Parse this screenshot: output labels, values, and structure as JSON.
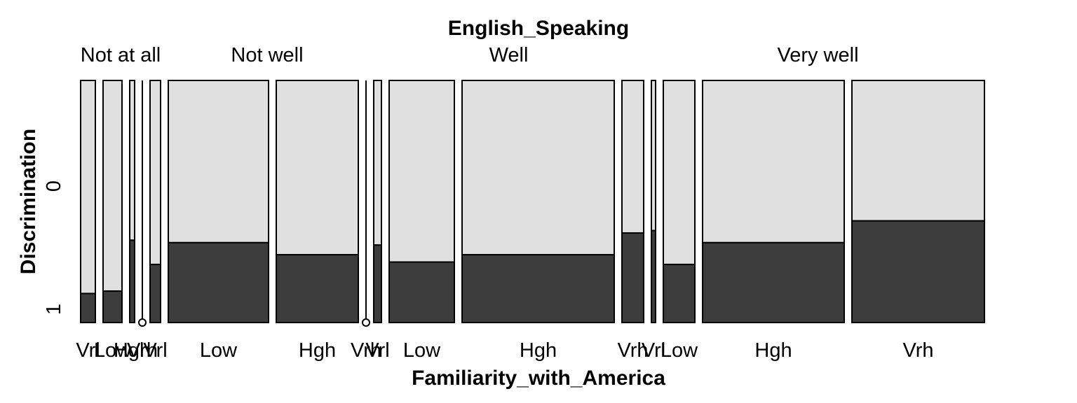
{
  "chart_data": {
    "type": "mosaic",
    "title": "English_Speaking",
    "xlabel": "Familiarity_with_America",
    "ylabel": "Discrimination",
    "y_levels": [
      "0",
      "1"
    ],
    "colors": {
      "0": "#e0e0e0",
      "1": "#3d3d3d"
    },
    "groups": [
      {
        "name": "Not at all",
        "cells": [
          {
            "label": "Vrl",
            "width": 21,
            "prop1": 0.12
          },
          {
            "label": "Low",
            "width": 27,
            "prop1": 0.13
          },
          {
            "label": "Hgh",
            "width": 7,
            "prop1": 0.34
          },
          {
            "label": "Vrh",
            "width": 0,
            "prop1": null
          },
          {
            "label": "Vrl",
            "width": 15,
            "prop1": 0.24
          }
        ]
      },
      {
        "name": "Not well",
        "cells": [
          {
            "label": "Low",
            "width": 143,
            "prop1": 0.33
          },
          {
            "label": "Hgh",
            "width": 117,
            "prop1": 0.28
          },
          {
            "label": "Vrh",
            "width": 0,
            "prop1": null
          }
        ]
      },
      {
        "name": "Well",
        "cells": [
          {
            "label": "Vrl",
            "width": 11,
            "prop1": 0.32
          },
          {
            "label": "Low",
            "width": 93,
            "prop1": 0.25
          },
          {
            "label": "Hgh",
            "width": 217,
            "prop1": 0.28
          },
          {
            "label": "Vrh",
            "width": 31,
            "prop1": 0.37
          }
        ]
      },
      {
        "name": "Very well",
        "cells": [
          {
            "label": "Vrl",
            "width": 6,
            "prop1": 0.38
          },
          {
            "label": "Low",
            "width": 45,
            "prop1": 0.24
          },
          {
            "label": "Hgh",
            "width": 202,
            "prop1": 0.33
          },
          {
            "label": "Vrh",
            "width": 189,
            "prop1": 0.42
          }
        ]
      }
    ]
  }
}
